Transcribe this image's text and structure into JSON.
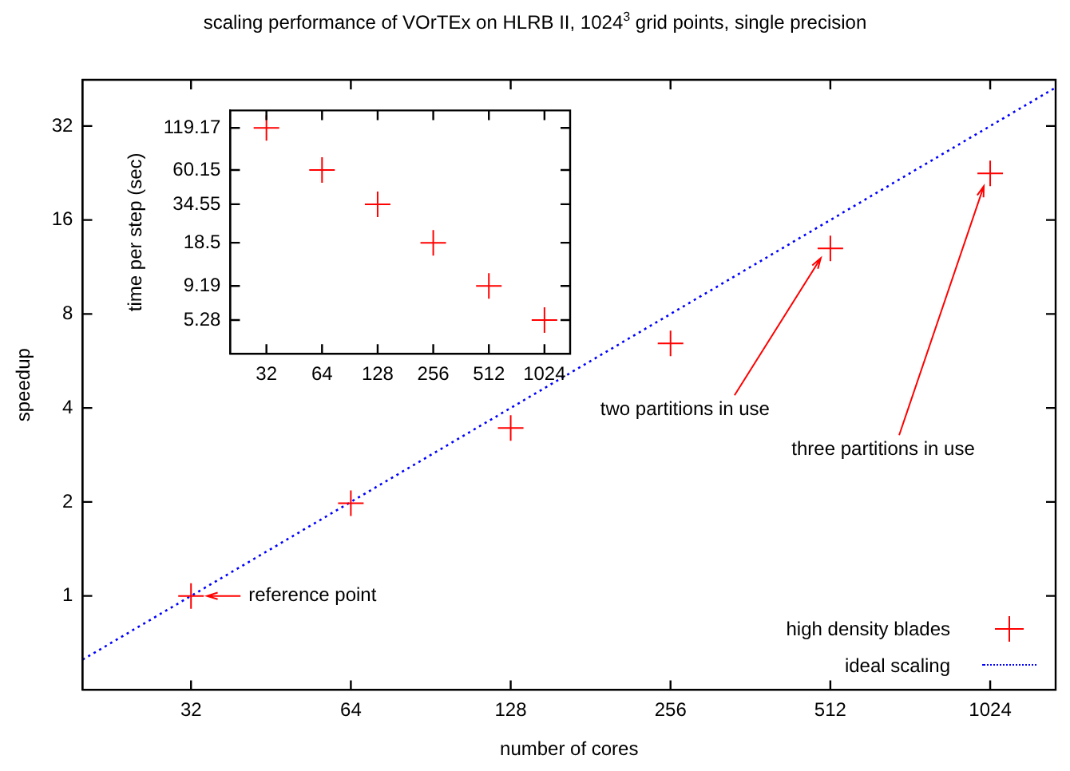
{
  "chart_data": [
    {
      "type": "scatter",
      "title": "scaling performance of VOrTEx on HLRB II, 1024$^{3}$ grid points, single precision",
      "xlabel": "number of cores",
      "ylabel": "speedup",
      "log": "xy",
      "xlim": [
        20,
        1360
      ],
      "ylim": [
        0.5,
        45
      ],
      "xticks": [
        32,
        64,
        128,
        256,
        512,
        1024
      ],
      "yticks": [
        1,
        2,
        4,
        8,
        16,
        32
      ],
      "grid": false,
      "legend": "bottom right",
      "series": [
        {
          "name": "high density blades",
          "type": "scatter",
          "color": "#ff0000",
          "marker": "cross",
          "x": [
            32,
            64,
            128,
            256,
            512,
            1024
          ],
          "values": [
            1,
            1.98,
            3.45,
            6.44,
            12.97,
            22.57
          ]
        },
        {
          "name": "ideal scaling",
          "type": "line",
          "color": "#0000ff",
          "marker": "none",
          "line_style": "dotted",
          "x": [
            20,
            1360
          ],
          "values": [
            0.625,
            42.5
          ]
        }
      ],
      "annotations": [
        {
          "text": "reference point",
          "x": 32,
          "y": 1
        },
        {
          "text": "two partitions in use",
          "x": 512,
          "y": 12.97
        },
        {
          "text": "three partitions in use",
          "x": 1024,
          "y": 22.57
        }
      ]
    },
    {
      "type": "scatter",
      "ylabel": "time per step (sec)",
      "log": "xy",
      "xlim": [
        20.4,
        1410
      ],
      "ylim": [
        3.06,
        158
      ],
      "xticks": [
        32,
        64,
        128,
        256,
        512,
        1024
      ],
      "yticks": [
        5.28,
        9.19,
        18.5,
        34.55,
        60.15,
        119.17
      ],
      "grid": false,
      "series": [
        {
          "type": "scatter",
          "color": "#ff0000",
          "marker": "cross",
          "x": [
            32,
            64,
            128,
            256,
            512,
            1024
          ],
          "values": [
            119.17,
            60.15,
            34.55,
            18.5,
            9.19,
            5.28
          ]
        }
      ]
    }
  ]
}
